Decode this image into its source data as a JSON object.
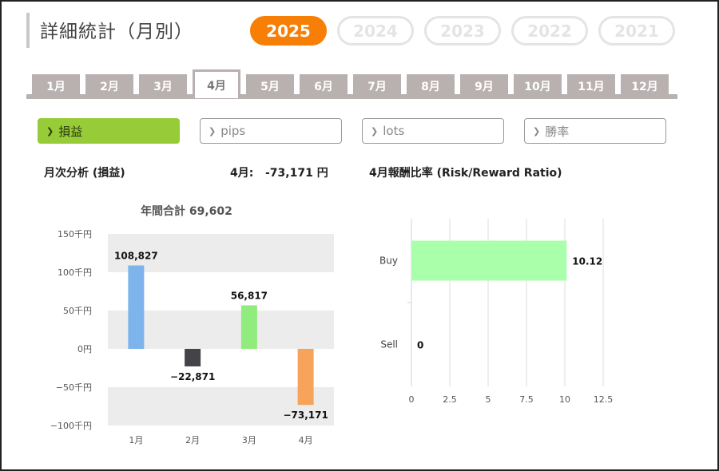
{
  "page": {
    "title": "詳細統計（月別）"
  },
  "years": [
    {
      "label": "2025",
      "active": true
    },
    {
      "label": "2024",
      "active": false
    },
    {
      "label": "2023",
      "active": false
    },
    {
      "label": "2022",
      "active": false
    },
    {
      "label": "2021",
      "active": false
    }
  ],
  "months": [
    {
      "label": "1月",
      "active": false
    },
    {
      "label": "2月",
      "active": false
    },
    {
      "label": "3月",
      "active": false
    },
    {
      "label": "4月",
      "active": true
    },
    {
      "label": "5月",
      "active": false
    },
    {
      "label": "6月",
      "active": false
    },
    {
      "label": "7月",
      "active": false
    },
    {
      "label": "8月",
      "active": false
    },
    {
      "label": "9月",
      "active": false
    },
    {
      "label": "10月",
      "active": false
    },
    {
      "label": "11月",
      "active": false
    },
    {
      "label": "12月",
      "active": false
    }
  ],
  "metric_tabs": [
    {
      "label": "損益",
      "active": true
    },
    {
      "label": "pips",
      "active": false
    },
    {
      "label": "lots",
      "active": false
    },
    {
      "label": "勝率",
      "active": false
    }
  ],
  "monthly_section": {
    "label": "月次分析 (損益)",
    "current_label": "4月:",
    "current_value": "-73,171 円"
  },
  "ratio_section": {
    "label": "4月報酬比率 (Risk/Reward Ratio)"
  },
  "colors": {
    "accent": "#f77f06",
    "metric_active": "#97cb38",
    "tab": "#b9b0b0"
  },
  "chart_data": [
    {
      "type": "bar",
      "title": "年間合計 69,602",
      "categories": [
        "1月",
        "2月",
        "3月",
        "4月"
      ],
      "values": [
        108827,
        -22871,
        56817,
        -73171
      ],
      "value_labels": [
        "108,827",
        "−22,871",
        "56,817",
        "−73,171"
      ],
      "colors": [
        "#7cb4eb",
        "#434348",
        "#90ed7d",
        "#f7a35c"
      ],
      "yticks": [
        150,
        100,
        50,
        0,
        -50,
        -100
      ],
      "ytick_labels": [
        "150千円",
        "100千円",
        "50千円",
        "0円",
        "−50千円",
        "−100千円"
      ],
      "ylim": [
        -100,
        150
      ],
      "yunit": "千円"
    },
    {
      "type": "bar",
      "orientation": "horizontal",
      "categories": [
        "Buy",
        "Sell"
      ],
      "values": [
        10.12,
        0
      ],
      "value_labels": [
        "10.12",
        "0"
      ],
      "color": "#aaffaa",
      "xticks": [
        0,
        2.5,
        5,
        7.5,
        10,
        12.5
      ],
      "xtick_labels": [
        "0",
        "2.5",
        "5",
        "7.5",
        "10",
        "12.5"
      ],
      "xlim": [
        0,
        12.5
      ]
    }
  ]
}
